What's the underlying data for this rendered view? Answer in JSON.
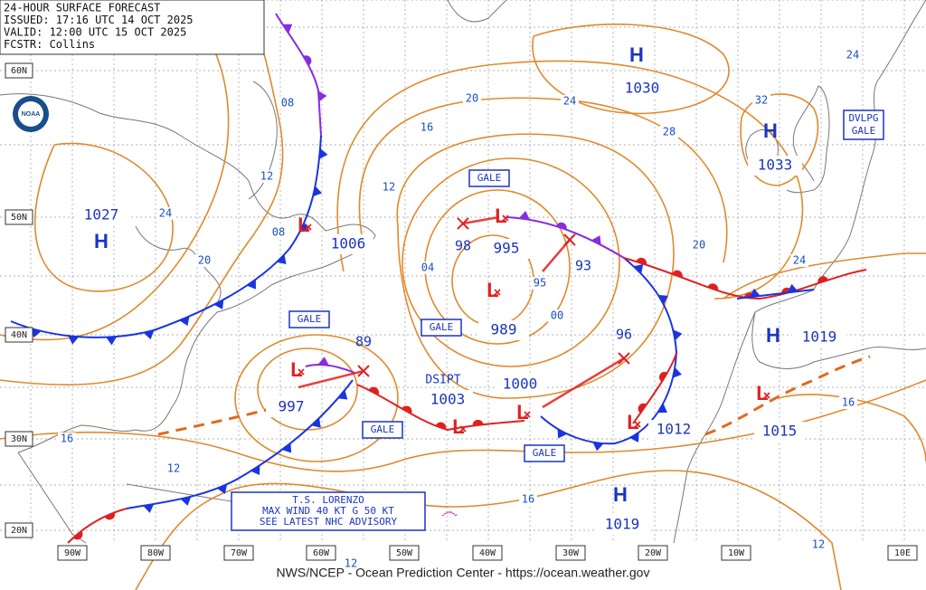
{
  "header": {
    "lines": [
      "24-HOUR SURFACE FORECAST",
      "ISSUED: 17:16 UTC 14 OCT 2025",
      "VALID: 12:00 UTC 15 OCT 2025",
      "FCSTR: Collins"
    ]
  },
  "logo": "NOAA",
  "footer": "NWS/NCEP - Ocean Prediction Center - https://ocean.weather.gov",
  "latitude_labels": [
    "60N",
    "50N",
    "40N",
    "30N",
    "20N"
  ],
  "longitude_labels": [
    "90W",
    "80W",
    "70W",
    "60W",
    "50W",
    "40W",
    "30W",
    "20W",
    "10W",
    "10E"
  ],
  "highs": [
    {
      "symbol": "H",
      "pressure": "1030"
    },
    {
      "symbol": "H",
      "pressure": "1033"
    },
    {
      "symbol": "H",
      "pressure": "1027"
    },
    {
      "symbol": "H",
      "pressure": "1019"
    },
    {
      "symbol": "H",
      "pressure": "1019"
    }
  ],
  "lows": [
    {
      "symbol": "L",
      "pressure": "1006"
    },
    {
      "symbol": "L",
      "pressure": "995"
    },
    {
      "symbol": "L",
      "pressure": "989"
    },
    {
      "symbol": "L",
      "pressure": "997"
    },
    {
      "symbol": "L",
      "pressure": "1003"
    },
    {
      "symbol": "L",
      "pressure": "1000"
    },
    {
      "symbol": "L",
      "pressure": "1012"
    },
    {
      "symbol": "L",
      "pressure": "1015"
    }
  ],
  "forecast_positions": [
    "98",
    "93",
    "89",
    "96"
  ],
  "isobar_labels": [
    "08",
    "12",
    "24",
    "20",
    "08",
    "12",
    "16",
    "20",
    "24",
    "28",
    "32",
    "24",
    "20",
    "24",
    "04",
    "95",
    "00",
    "16",
    "12",
    "16",
    "16",
    "12",
    "12"
  ],
  "warnings": [
    {
      "lines": [
        "GALE"
      ]
    },
    {
      "lines": [
        "GALE"
      ]
    },
    {
      "lines": [
        "GALE"
      ]
    },
    {
      "lines": [
        "GALE"
      ]
    },
    {
      "lines": [
        "GALE"
      ]
    },
    {
      "lines": [
        "DVLPG",
        "GALE"
      ]
    }
  ],
  "status_labels": [
    "DSIPT"
  ],
  "advisory": {
    "lines": [
      "T.S. LORENZO",
      "MAX WIND 40 KT G 50 KT",
      "SEE LATEST NHC ADVISORY"
    ]
  }
}
